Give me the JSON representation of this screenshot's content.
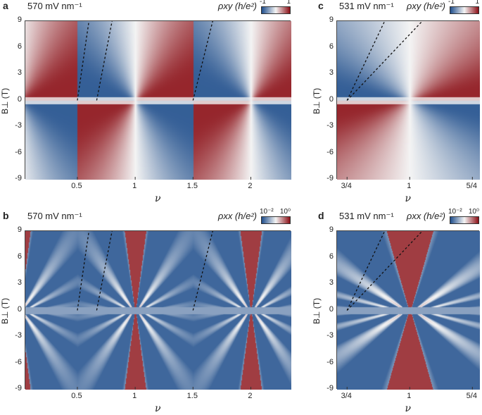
{
  "colors": {
    "low": "#1f4e8c",
    "mid": "#f4f4f4",
    "high": "#8b0f16"
  },
  "chart_data": [
    {
      "panel": "a",
      "type": "heatmap",
      "title": "570 mV nm⁻¹",
      "quantity": "ρxy (h/e²)",
      "colorbar": {
        "min_label": "-1",
        "max_label": "1",
        "scale": "linear"
      },
      "xlabel": "ν",
      "ylabel": "B⊥ (T)",
      "xlim": [
        0.05,
        2.35
      ],
      "ylim": [
        -9,
        9
      ],
      "xticks": [
        {
          "v": 0.5,
          "label": "0.5"
        },
        {
          "v": 1,
          "label": "1"
        },
        {
          "v": 1.5,
          "label": "1.5"
        },
        {
          "v": 2,
          "label": "2"
        }
      ],
      "yticks": [
        9,
        6,
        3,
        0,
        -3,
        -6,
        -9
      ],
      "fan_centers": [
        0,
        1,
        2
      ],
      "dashed_lines": [
        [
          [
            0.5,
            0
          ],
          [
            0.6,
            9
          ]
        ],
        [
          [
            0.667,
            0
          ],
          [
            0.8,
            9
          ]
        ],
        [
          [
            1.5,
            0
          ],
          [
            1.67,
            9
          ]
        ]
      ]
    },
    {
      "panel": "b",
      "type": "heatmap",
      "title": "570 mV nm⁻¹",
      "quantity": "ρxx (h/e²)",
      "colorbar": {
        "min_label": "10⁻²",
        "max_label": "10⁰",
        "scale": "log"
      },
      "xlabel": "ν",
      "ylabel": "B⊥ (T)",
      "xlim": [
        0.05,
        2.35
      ],
      "ylim": [
        -9,
        9
      ],
      "xticks": [
        {
          "v": 0.5,
          "label": "0.5"
        },
        {
          "v": 1,
          "label": "1"
        },
        {
          "v": 1.5,
          "label": "1.5"
        },
        {
          "v": 2,
          "label": "2"
        }
      ],
      "yticks": [
        9,
        6,
        3,
        0,
        -3,
        -6,
        -9
      ],
      "fan_centers": [
        0,
        1,
        2
      ],
      "dashed_lines": [
        [
          [
            0.5,
            0
          ],
          [
            0.6,
            9
          ]
        ],
        [
          [
            0.667,
            0
          ],
          [
            0.8,
            9
          ]
        ],
        [
          [
            1.5,
            0
          ],
          [
            1.67,
            9
          ]
        ]
      ]
    },
    {
      "panel": "c",
      "type": "heatmap",
      "title": "531 mV nm⁻¹",
      "quantity": "ρxy (h/e²)",
      "colorbar": {
        "min_label": "-1",
        "max_label": "1",
        "scale": "linear"
      },
      "xlabel": "ν",
      "ylabel": "B⊥ (T)",
      "xlim": [
        0.71,
        1.28
      ],
      "ylim": [
        -9,
        9
      ],
      "xticks": [
        {
          "v": 0.75,
          "label": "3/4"
        },
        {
          "v": 1,
          "label": "1"
        },
        {
          "v": 1.25,
          "label": "5/4"
        }
      ],
      "yticks": [
        9,
        6,
        3,
        0,
        -3,
        -6,
        -9
      ],
      "fan_centers": [
        1
      ],
      "dashed_lines": [
        [
          [
            0.75,
            0
          ],
          [
            0.9,
            9
          ]
        ],
        [
          [
            0.75,
            0
          ],
          [
            1.05,
            9
          ]
        ]
      ]
    },
    {
      "panel": "d",
      "type": "heatmap",
      "title": "531 mV nm⁻¹",
      "quantity": "ρxx (h/e²)",
      "colorbar": {
        "min_label": "10⁻²",
        "max_label": "10⁰",
        "scale": "log"
      },
      "xlabel": "ν",
      "ylabel": "B⊥ (T)",
      "xlim": [
        0.71,
        1.28
      ],
      "ylim": [
        -9,
        9
      ],
      "xticks": [
        {
          "v": 0.75,
          "label": "3/4"
        },
        {
          "v": 1,
          "label": "1"
        },
        {
          "v": 1.25,
          "label": "5/4"
        }
      ],
      "yticks": [
        9,
        6,
        3,
        0,
        -3,
        -6,
        -9
      ],
      "fan_centers": [
        1
      ],
      "dashed_lines": [
        [
          [
            0.75,
            0
          ],
          [
            0.9,
            9
          ]
        ],
        [
          [
            0.75,
            0
          ],
          [
            1.05,
            9
          ]
        ]
      ]
    }
  ]
}
